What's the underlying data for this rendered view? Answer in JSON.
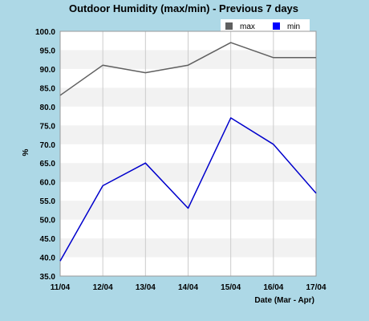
{
  "chart_data": {
    "type": "line",
    "title": "Outdoor Humidity (max/min) - Previous 7 days",
    "xlabel": "Date (Mar - Apr)",
    "ylabel": "%",
    "ylim": [
      35.0,
      100.0
    ],
    "y_ticks": [
      "35.0",
      "40.0",
      "45.0",
      "50.0",
      "55.0",
      "60.0",
      "65.0",
      "70.0",
      "75.0",
      "80.0",
      "85.0",
      "90.0",
      "95.0",
      "100.0"
    ],
    "categories": [
      "11/04",
      "12/04",
      "13/04",
      "14/04",
      "15/04",
      "16/04",
      "17/04"
    ],
    "grid": true,
    "legend_position": "top-right",
    "series": [
      {
        "name": "max",
        "color": "#606060",
        "values": [
          83,
          91,
          89,
          91,
          97,
          93,
          93
        ]
      },
      {
        "name": "min",
        "color": "#0000cc",
        "values": [
          39,
          59,
          65,
          53,
          77,
          70,
          57
        ]
      }
    ]
  },
  "colors": {
    "page_background": "#add8e6",
    "plot_background": "#ffffff",
    "band_background": "#f2f2f2",
    "grid": "#cccccc",
    "legend_max": "#606060",
    "legend_min": "#0000ff"
  }
}
